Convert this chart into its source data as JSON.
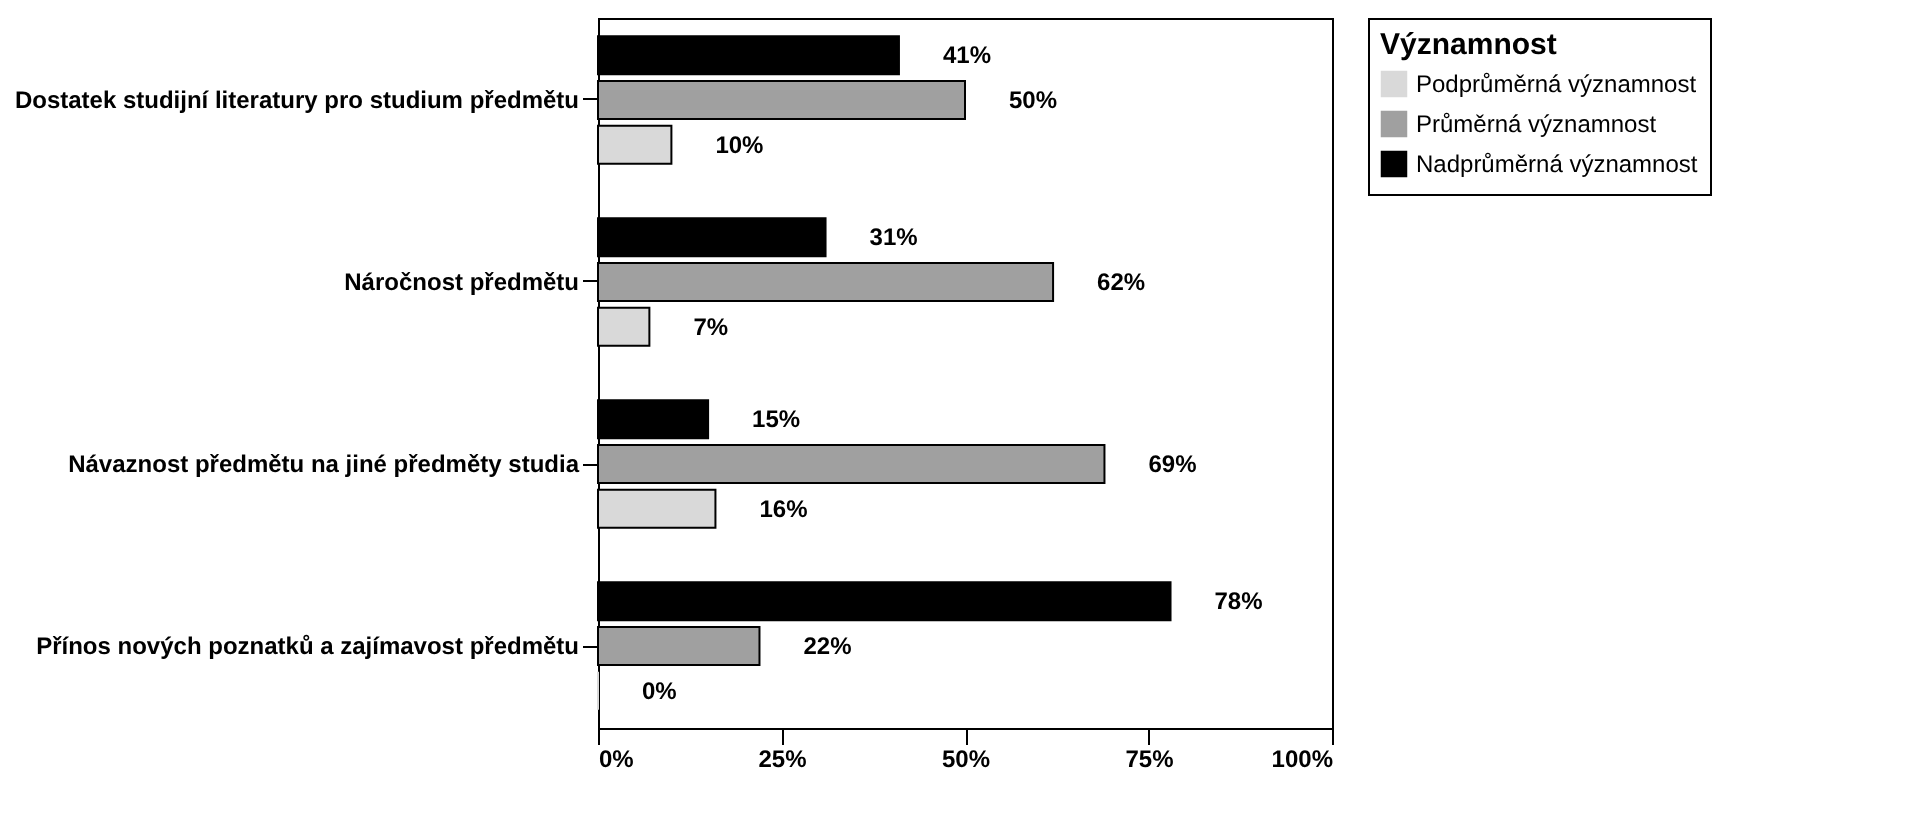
{
  "chart_data": {
    "type": "bar",
    "orientation": "horizontal",
    "legend_title": "Významnost",
    "legend": "top right",
    "grid": false,
    "categories": [
      "Dostatek studijní literatury pro studium předmětu",
      "Náročnost předmětu",
      "Návaznost předmětu na jiné předměty studia",
      "Přínos nových poznatků a zajímavost předmětu"
    ],
    "series": [
      {
        "name": "Podprůměrná významnost",
        "color": "#d9d9d9",
        "values": [
          10,
          7,
          16,
          0
        ],
        "value_labels": [
          "10%",
          "7%",
          "16%",
          "0%"
        ]
      },
      {
        "name": "Průměrná významnost",
        "color": "#a0a0a0",
        "values": [
          50,
          62,
          69,
          22
        ],
        "value_labels": [
          "50%",
          "62%",
          "69%",
          "22%"
        ]
      },
      {
        "name": "Nadprůměrná významnost",
        "color": "#000000",
        "values": [
          41,
          31,
          15,
          78
        ],
        "value_labels": [
          "41%",
          "31%",
          "15%",
          "78%"
        ]
      }
    ],
    "xlim": [
      0,
      100
    ],
    "xticks": [
      {
        "value": 0,
        "label": "0%"
      },
      {
        "value": 25,
        "label": "25%"
      },
      {
        "value": 50,
        "label": "50%"
      },
      {
        "value": 75,
        "label": "75%"
      },
      {
        "value": 100,
        "label": "100%"
      }
    ]
  }
}
